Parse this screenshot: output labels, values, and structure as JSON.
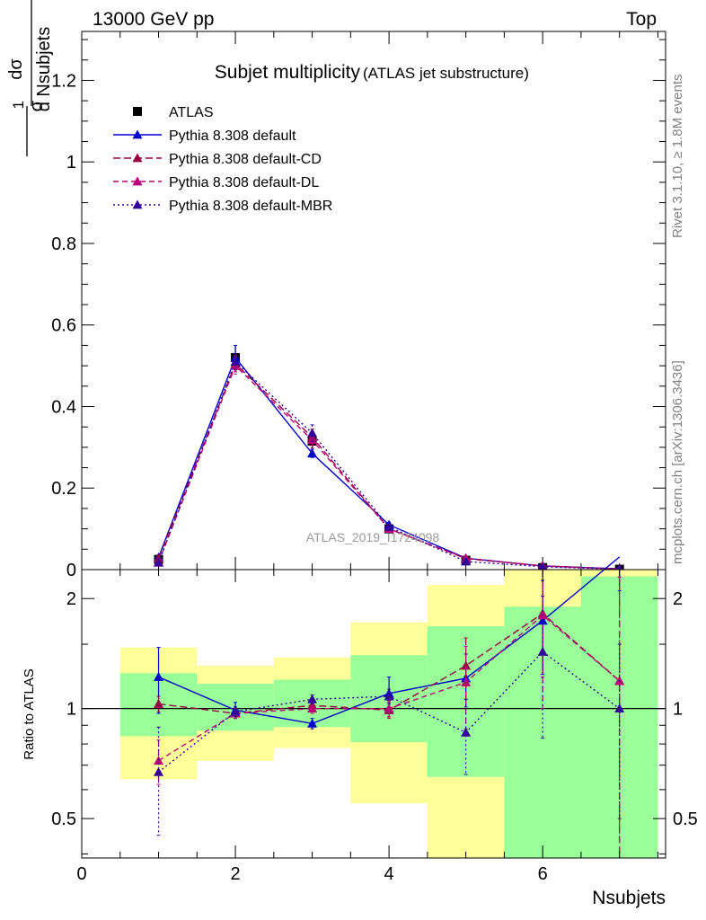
{
  "header": {
    "left": "13000 GeV pp",
    "right": "Top"
  },
  "side_labels": {
    "rivet": "Rivet 3.1.10, ≥ 1.8M events",
    "mcplots": "mcplots.cern.ch [arXiv:1306.3436]"
  },
  "chart_data": [
    {
      "panel": "main",
      "type": "line",
      "title": "Subjet multiplicity",
      "subtitle": "(ATLAS jet substructure)",
      "watermark": "ATLAS_2019_I1724098",
      "ylabel_frac": {
        "a": "1",
        "b": "σ",
        "c": "dσ",
        "d": "d Nsubjets"
      },
      "xlabel": "Nsubjets",
      "xlim": [
        0,
        7.6
      ],
      "ylim": [
        0,
        1.32
      ],
      "yticks": [
        0.2,
        0.4,
        0.6,
        0.8,
        1,
        1.2
      ],
      "ytick_labels": [
        "0.2",
        "0.4",
        "0.6",
        "0.8",
        "1",
        "1.2"
      ],
      "ytick_zero_label": "0",
      "x": [
        1,
        2,
        3,
        4,
        5,
        6,
        7
      ],
      "data": {
        "name": "ATLAS",
        "values": [
          0.025,
          0.52,
          0.315,
          0.1,
          0.023,
          0.005,
          0.001
        ],
        "errors": [
          0.01,
          0.03,
          0.02,
          0.01,
          0.005,
          0.003,
          0.001
        ]
      },
      "series": [
        {
          "name": "Pythia 8.308 default",
          "color": "#0000cc",
          "dash": "solid",
          "values": [
            0.03,
            0.52,
            0.285,
            0.11,
            0.028,
            0.009,
            0.002
          ],
          "errors": [
            0.003,
            0.03,
            0.01,
            0.006,
            0.002,
            0.002,
            0.001
          ]
        },
        {
          "name": "Pythia 8.308 default-CD",
          "color": "#990044",
          "dash": "8,4",
          "values": [
            0.027,
            0.505,
            0.325,
            0.1,
            0.027,
            0.009,
            0.0015
          ],
          "errors": [
            0.003,
            0.02,
            0.02,
            0.006,
            0.002,
            0.002,
            0.001
          ]
        },
        {
          "name": "Pythia 8.308 default-DL",
          "color": "#bb0077",
          "dash": "6,4",
          "values": [
            0.018,
            0.5,
            0.318,
            0.1,
            0.028,
            0.009,
            0.0015
          ],
          "errors": [
            0.003,
            0.02,
            0.02,
            0.006,
            0.002,
            0.002,
            0.001
          ]
        },
        {
          "name": "Pythia 8.308 default-MBR",
          "color": "#330099",
          "dash": "2,3",
          "values": [
            0.017,
            0.51,
            0.335,
            0.105,
            0.02,
            0.007,
            0.001
          ],
          "errors": [
            0.003,
            0.02,
            0.02,
            0.006,
            0.002,
            0.002,
            0.001
          ]
        }
      ]
    },
    {
      "panel": "ratio",
      "type": "line",
      "ylabel": "Ratio to ATLAS",
      "xlabel": "Nsubjets",
      "xlim": [
        0,
        7.6
      ],
      "ylim": [
        0.39,
        2.4
      ],
      "log_y": true,
      "xticks": [
        0,
        2,
        4,
        6
      ],
      "xtick_labels": [
        "0",
        "2",
        "4",
        "6"
      ],
      "yticks": [
        0.5,
        1,
        2
      ],
      "ytick_labels": [
        "0.5",
        "1",
        "2"
      ],
      "bands": [
        {
          "xlo": 0.5,
          "xhi": 1.5,
          "yellow": [
            0.64,
            1.47
          ],
          "green": [
            0.84,
            1.25
          ]
        },
        {
          "xlo": 1.5,
          "xhi": 2.5,
          "yellow": [
            0.72,
            1.31
          ],
          "green": [
            0.87,
            1.17
          ]
        },
        {
          "xlo": 2.5,
          "xhi": 3.5,
          "yellow": [
            0.78,
            1.38
          ],
          "green": [
            0.89,
            1.2
          ]
        },
        {
          "xlo": 3.5,
          "xhi": 4.5,
          "yellow": [
            0.55,
            1.72
          ],
          "green": [
            0.81,
            1.4
          ]
        },
        {
          "xlo": 4.5,
          "xhi": 5.5,
          "yellow": [
            0.39,
            2.18
          ],
          "green": [
            0.65,
            1.68
          ]
        },
        {
          "xlo": 5.5,
          "xhi": 6.5,
          "yellow": [
            0.39,
            2.4
          ],
          "green": [
            0.39,
            1.9
          ]
        },
        {
          "xlo": 6.5,
          "xhi": 7.5,
          "yellow": [
            0.39,
            2.4
          ],
          "green": [
            0.39,
            2.3
          ]
        }
      ],
      "x": [
        1,
        2,
        3,
        4,
        5,
        6,
        7
      ],
      "series": [
        {
          "name": "Pythia 8.308 default",
          "color": "#0000cc",
          "dash": "solid",
          "values": [
            1.22,
            0.99,
            0.91,
            1.1,
            1.21,
            1.74,
            2.6
          ],
          "errors": [
            0.25,
            0.05,
            0.03,
            0.12,
            0.2,
            0.5,
            0.5
          ]
        },
        {
          "name": "Pythia 8.308 default-CD",
          "color": "#990044",
          "dash": "8,4",
          "values": [
            1.03,
            0.97,
            1.02,
            0.99,
            1.31,
            1.82,
            1.19
          ],
          "errors": [
            0.05,
            0.03,
            0.03,
            0.05,
            0.25,
            0.6,
            1.1
          ]
        },
        {
          "name": "Pythia 8.308 default-DL",
          "color": "#bb0077",
          "dash": "6,4",
          "values": [
            0.72,
            0.97,
            1.0,
            1.0,
            1.18,
            1.8,
            1.19
          ],
          "errors": [
            0.1,
            0.03,
            0.03,
            0.05,
            0.3,
            0.8,
            1.1
          ]
        },
        {
          "name": "Pythia 8.308 default-MBR",
          "color": "#330099",
          "dash": "2,3",
          "values": [
            0.67,
            0.98,
            1.06,
            1.08,
            0.86,
            1.43,
            1.0
          ],
          "errors": [
            0.22,
            0.03,
            0.03,
            0.05,
            0.2,
            0.6,
            0.5
          ]
        }
      ]
    }
  ]
}
